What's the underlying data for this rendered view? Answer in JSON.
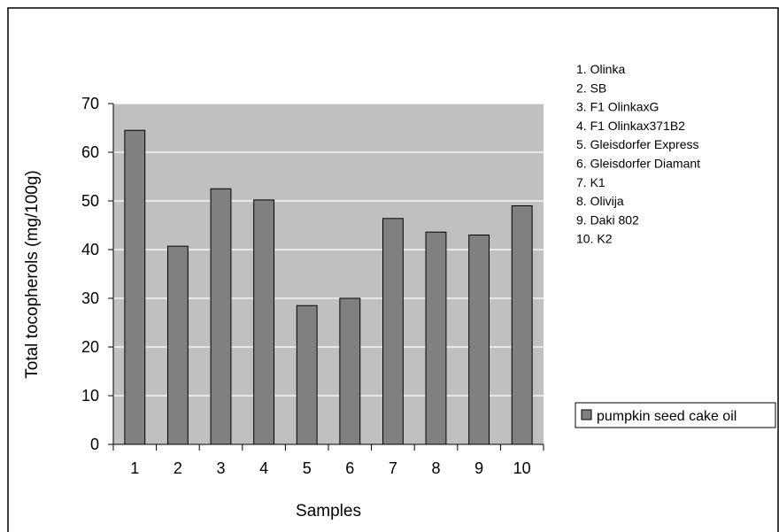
{
  "chart_data": {
    "type": "bar",
    "title": "",
    "xlabel": "Samples",
    "ylabel": "Total tocopherols (mg/100g)",
    "ylim": [
      0,
      70
    ],
    "yticks": [
      0,
      10,
      20,
      30,
      40,
      50,
      60,
      70
    ],
    "grid": "horizontal",
    "categories": [
      "1",
      "2",
      "3",
      "4",
      "5",
      "6",
      "7",
      "8",
      "9",
      "10"
    ],
    "series": [
      {
        "name": "pumpkin seed cake oil",
        "color": "#808080",
        "values": [
          64.5,
          40.7,
          52.5,
          50.2,
          28.5,
          30.0,
          46.4,
          43.6,
          43.0,
          49.0
        ]
      }
    ],
    "plot_background": "#c0c0c0",
    "legend_position": "right",
    "sample_key": [
      "1. Olinka",
      "2. SB",
      "3. F1 OlinkaxG",
      "4. F1 Olinkax371B2",
      "5. Gleisdorfer Express",
      "6. Gleisdorfer Diamant",
      "7. K1",
      "8. Olivija",
      "9. Daki 802",
      "10. K2"
    ]
  }
}
